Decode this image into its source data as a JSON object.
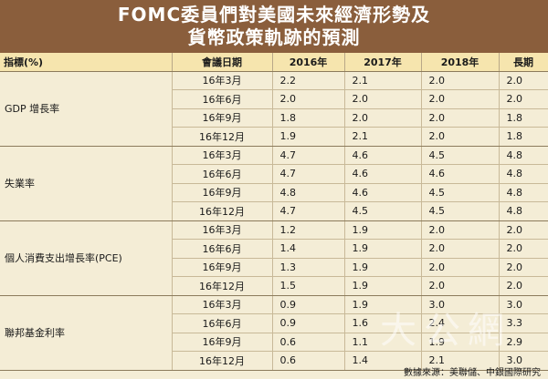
{
  "title": {
    "line1": "FOMC委員們對美國未來經濟形勢及",
    "line2": "貨幣政策軌跡的預測"
  },
  "headers": [
    "指標(%)",
    "會議日期",
    "2016年",
    "2017年",
    "2018年",
    "長期"
  ],
  "groups": [
    {
      "label": "GDP 增長率",
      "rows": [
        {
          "date": "16年3月",
          "y2016": "2.2",
          "y2017": "2.1",
          "y2018": "2.0",
          "long": "2.0"
        },
        {
          "date": "16年6月",
          "y2016": "2.0",
          "y2017": "2.0",
          "y2018": "2.0",
          "long": "2.0"
        },
        {
          "date": "16年9月",
          "y2016": "1.8",
          "y2017": "2.0",
          "y2018": "2.0",
          "long": "1.8"
        },
        {
          "date": "16年12月",
          "y2016": "1.9",
          "y2017": "2.1",
          "y2018": "2.0",
          "long": "1.8"
        }
      ]
    },
    {
      "label": "失業率",
      "rows": [
        {
          "date": "16年3月",
          "y2016": "4.7",
          "y2017": "4.6",
          "y2018": "4.5",
          "long": "4.8"
        },
        {
          "date": "16年6月",
          "y2016": "4.7",
          "y2017": "4.6",
          "y2018": "4.6",
          "long": "4.8"
        },
        {
          "date": "16年9月",
          "y2016": "4.8",
          "y2017": "4.6",
          "y2018": "4.5",
          "long": "4.8"
        },
        {
          "date": "16年12月",
          "y2016": "4.7",
          "y2017": "4.5",
          "y2018": "4.5",
          "long": "4.8"
        }
      ]
    },
    {
      "label": "個人消費支出增長率(PCE)",
      "rows": [
        {
          "date": "16年3月",
          "y2016": "1.2",
          "y2017": "1.9",
          "y2018": "2.0",
          "long": "2.0"
        },
        {
          "date": "16年6月",
          "y2016": "1.4",
          "y2017": "1.9",
          "y2018": "2.0",
          "long": "2.0"
        },
        {
          "date": "16年9月",
          "y2016": "1.3",
          "y2017": "1.9",
          "y2018": "2.0",
          "long": "2.0"
        },
        {
          "date": "16年12月",
          "y2016": "1.5",
          "y2017": "1.9",
          "y2018": "2.0",
          "long": "2.0"
        }
      ]
    },
    {
      "label": "聯邦基金利率",
      "rows": [
        {
          "date": "16年3月",
          "y2016": "0.9",
          "y2017": "1.9",
          "y2018": "3.0",
          "long": "3.0"
        },
        {
          "date": "16年6月",
          "y2016": "0.9",
          "y2017": "1.6",
          "y2018": "2.4",
          "long": "3.3"
        },
        {
          "date": "16年9月",
          "y2016": "0.6",
          "y2017": "1.1",
          "y2018": "1.9",
          "long": "2.9"
        },
        {
          "date": "16年12月",
          "y2016": "0.6",
          "y2017": "1.4",
          "y2018": "2.1",
          "long": "3.0"
        }
      ]
    }
  ],
  "source": "數據來源：美聯儲、中銀國際研究",
  "watermark": "大公網"
}
